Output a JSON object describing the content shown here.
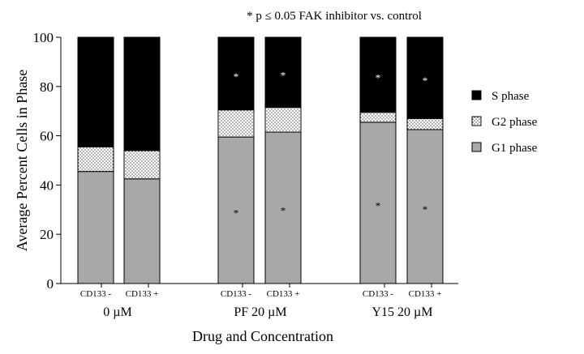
{
  "chart_data": {
    "type": "bar",
    "stacked": true,
    "title": "",
    "annotation": "* p ≤ 0.05 FAK inhibitor vs. control",
    "ylabel": "Average Percent Cells in Phase",
    "xlabel": "Drug and Concentration",
    "ylim": [
      0,
      100
    ],
    "yticks": [
      0,
      20,
      40,
      60,
      80,
      100
    ],
    "groups": [
      {
        "label": "0 µM",
        "categories": [
          "CD133 -",
          "CD133 +"
        ]
      },
      {
        "label": "PF 20 µM",
        "categories": [
          "CD133 -",
          "CD133 +"
        ]
      },
      {
        "label": "Y15 20 µM",
        "categories": [
          "CD133 -",
          "CD133 +"
        ]
      }
    ],
    "categories": [
      "CD133 -",
      "CD133 +",
      "CD133 -",
      "CD133 +",
      "CD133 -",
      "CD133 +"
    ],
    "series": [
      {
        "name": "G1 phase",
        "color": "#a8a8a8",
        "pattern": "solid",
        "values": [
          45.5,
          42.5,
          59.5,
          61.5,
          65.5,
          62.5
        ],
        "significant": [
          false,
          false,
          true,
          true,
          true,
          true
        ]
      },
      {
        "name": "G2 phase",
        "color": "#ffffff",
        "pattern": "dots",
        "values": [
          10,
          11.5,
          11,
          10,
          4,
          4.5
        ],
        "significant": [
          false,
          false,
          false,
          false,
          false,
          false
        ]
      },
      {
        "name": "S phase",
        "color": "#000000",
        "pattern": "solid",
        "values": [
          44.5,
          46,
          29.5,
          28.5,
          30.5,
          33
        ],
        "significant": [
          false,
          false,
          true,
          true,
          true,
          true
        ]
      }
    ],
    "significance_marker": "*",
    "legend": {
      "placement": "right",
      "entries": [
        "S phase",
        "G2 phase",
        "G1 phase"
      ]
    },
    "grid": false
  }
}
